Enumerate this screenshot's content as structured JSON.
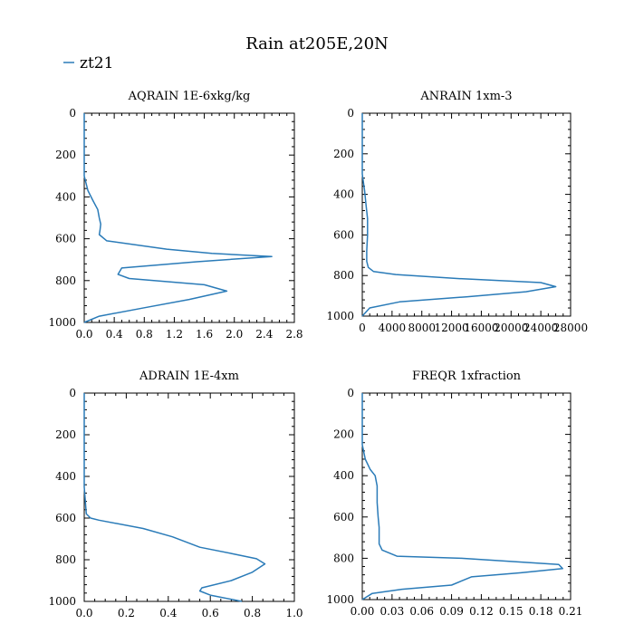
{
  "figure": {
    "title": "Rain at205E,20N",
    "legend": {
      "label": "zt21",
      "color": "#2a7bb8"
    }
  },
  "chart_data": [
    {
      "type": "line",
      "title": "AQRAIN  1E-6xkg/kg",
      "series": [
        {
          "name": "zt21",
          "color": "#2a7bb8",
          "x": [
            0,
            0,
            0.05,
            0.12,
            0.18,
            0.2,
            0.22,
            0.21,
            0.2,
            0.3,
            1.1,
            1.7,
            2.5,
            1.5,
            0.5,
            0.45,
            0.6,
            1.6,
            1.9,
            1.4,
            0.8,
            0.2,
            0
          ],
          "y": [
            0,
            300,
            370,
            420,
            460,
            500,
            530,
            560,
            580,
            610,
            650,
            670,
            685,
            710,
            740,
            770,
            790,
            820,
            850,
            890,
            930,
            970,
            1000
          ]
        }
      ],
      "xlim": [
        0,
        2.8
      ],
      "ylim": [
        1000,
        0
      ],
      "xticks": [
        0,
        0.4,
        0.8,
        1.2,
        1.6,
        2.0,
        2.4,
        2.8
      ],
      "xtick_labels": [
        "0.0",
        "0.4",
        "0.8",
        "1.2",
        "1.6",
        "2.0",
        "2.4",
        "2.8"
      ],
      "yticks": [
        0,
        200,
        400,
        600,
        800,
        1000
      ],
      "ytick_labels": [
        "0",
        "200",
        "400",
        "600",
        "800",
        "1000"
      ]
    },
    {
      "type": "line",
      "title": "ANRAIN  1xm-3",
      "series": [
        {
          "name": "zt21",
          "color": "#2a7bb8",
          "x": [
            0,
            0,
            300,
            500,
            700,
            700,
            600,
            600,
            800,
            1500,
            4500,
            13000,
            24000,
            26000,
            22000,
            14000,
            5000,
            1000,
            0
          ],
          "y": [
            0,
            300,
            380,
            450,
            520,
            600,
            680,
            730,
            760,
            780,
            795,
            815,
            835,
            855,
            880,
            905,
            930,
            960,
            1000
          ]
        }
      ],
      "xlim": [
        0,
        28000
      ],
      "ylim": [
        1000,
        0
      ],
      "xticks": [
        0,
        4000,
        8000,
        12000,
        16000,
        20000,
        24000,
        28000
      ],
      "xtick_labels": [
        "0",
        "4000",
        "8000",
        "12000",
        "16000",
        "20000",
        "24000",
        "28000"
      ],
      "yticks": [
        0,
        200,
        400,
        600,
        800,
        1000
      ],
      "ytick_labels": [
        "0",
        "200",
        "400",
        "600",
        "800",
        "1000"
      ]
    },
    {
      "type": "line",
      "title": "ADRAIN  1E-4xm",
      "series": [
        {
          "name": "zt21",
          "color": "#2a7bb8",
          "x": [
            0,
            0,
            0.01,
            0.03,
            0.07,
            0.28,
            0.42,
            0.55,
            0.7,
            0.82,
            0.86,
            0.8,
            0.7,
            0.56,
            0.55,
            0.6,
            0.75
          ],
          "y": [
            0,
            450,
            580,
            600,
            610,
            650,
            690,
            740,
            770,
            795,
            820,
            860,
            900,
            935,
            950,
            970,
            1000
          ]
        }
      ],
      "xlim": [
        0,
        1.0
      ],
      "ylim": [
        1000,
        0
      ],
      "xticks": [
        0,
        0.2,
        0.4,
        0.6,
        0.8,
        1.0
      ],
      "xtick_labels": [
        "0.0",
        "0.2",
        "0.4",
        "0.6",
        "0.8",
        "1.0"
      ],
      "yticks": [
        0,
        200,
        400,
        600,
        800,
        1000
      ],
      "ytick_labels": [
        "0",
        "200",
        "400",
        "600",
        "800",
        "1000"
      ]
    },
    {
      "type": "line",
      "title": "FREQR  1xfraction",
      "series": [
        {
          "name": "zt21",
          "color": "#2a7bb8",
          "x": [
            0,
            0,
            0.003,
            0.008,
            0.013,
            0.015,
            0.015,
            0.016,
            0.017,
            0.017,
            0.02,
            0.035,
            0.1,
            0.198,
            0.202,
            0.16,
            0.11,
            0.09,
            0.04,
            0.01,
            0
          ],
          "y": [
            0,
            250,
            320,
            370,
            400,
            450,
            530,
            600,
            650,
            730,
            760,
            790,
            800,
            830,
            850,
            870,
            890,
            930,
            950,
            970,
            1000
          ]
        }
      ],
      "xlim": [
        0,
        0.21
      ],
      "ylim": [
        1000,
        0
      ],
      "xticks": [
        0,
        0.03,
        0.06,
        0.09,
        0.12,
        0.15,
        0.18,
        0.21
      ],
      "xtick_labels": [
        "0.00",
        "0.03",
        "0.06",
        "0.09",
        "0.12",
        "0.15",
        "0.18",
        "0.21"
      ],
      "yticks": [
        0,
        200,
        400,
        600,
        800,
        1000
      ],
      "ytick_labels": [
        "0",
        "200",
        "400",
        "600",
        "800",
        "1000"
      ]
    }
  ]
}
